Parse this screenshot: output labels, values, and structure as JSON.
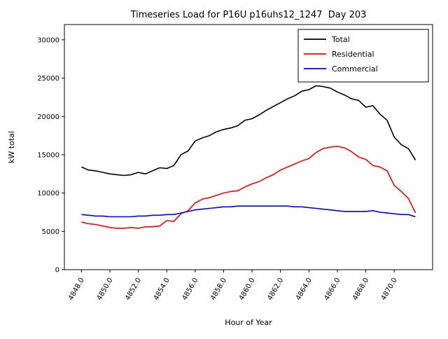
{
  "chart_data": {
    "type": "line",
    "title": "Timeseries Load for P16U p16uhs12_1247  Day 203",
    "xlabel": "Hour of Year",
    "ylabel": "kW total",
    "xlim": [
      4846.8,
      4872.7
    ],
    "ylim": [
      0,
      32000
    ],
    "grid": false,
    "legend_position": "upper right",
    "x_ticks": {
      "values": [
        4848,
        4850,
        4852,
        4854,
        4856,
        4858,
        4860,
        4862,
        4864,
        4866,
        4868,
        4870
      ],
      "labels": [
        "4848.0",
        "4850.0",
        "4852.0",
        "4854.0",
        "4856.0",
        "4858.0",
        "4860.0",
        "4862.0",
        "4864.0",
        "4866.0",
        "4868.0",
        "4870.0"
      ]
    },
    "y_ticks": {
      "values": [
        0,
        5000,
        10000,
        15000,
        20000,
        25000,
        30000
      ],
      "labels": [
        "0",
        "5000",
        "10000",
        "15000",
        "20000",
        "25000",
        "30000"
      ]
    },
    "x": [
      4848.0,
      4848.5,
      4849.0,
      4849.5,
      4850.0,
      4850.5,
      4851.0,
      4851.5,
      4852.0,
      4852.5,
      4853.0,
      4853.5,
      4854.0,
      4854.5,
      4855.0,
      4855.5,
      4856.0,
      4856.5,
      4857.0,
      4857.5,
      4858.0,
      4858.5,
      4859.0,
      4859.5,
      4860.0,
      4860.5,
      4861.0,
      4861.5,
      4862.0,
      4862.5,
      4863.0,
      4863.5,
      4864.0,
      4864.5,
      4865.0,
      4865.5,
      4866.0,
      4866.5,
      4867.0,
      4867.5,
      4868.0,
      4868.5,
      4869.0,
      4869.5,
      4870.0,
      4870.5,
      4871.0,
      4871.5
    ],
    "series": [
      {
        "name": "Total",
        "color": "#000000",
        "values": [
          13400,
          13000,
          12900,
          12700,
          12500,
          12400,
          12300,
          12400,
          12700,
          12500,
          12900,
          13300,
          13200,
          13600,
          15000,
          15500,
          16800,
          17200,
          17500,
          18000,
          18300,
          18500,
          18800,
          19500,
          19700,
          20200,
          20800,
          21300,
          21800,
          22300,
          22700,
          23300,
          23500,
          24000,
          23900,
          23700,
          23200,
          22800,
          22300,
          22100,
          21200,
          21400,
          20300,
          19500,
          17300,
          16300,
          15800,
          14300
        ]
      },
      {
        "name": "Residential",
        "color": "#ff0000",
        "values": [
          6200,
          6000,
          5900,
          5700,
          5500,
          5400,
          5400,
          5500,
          5400,
          5600,
          5600,
          5700,
          6400,
          6300,
          7300,
          7700,
          8700,
          9200,
          9400,
          9700,
          10000,
          10200,
          10300,
          10800,
          11200,
          11500,
          12000,
          12400,
          13000,
          13400,
          13800,
          14200,
          14500,
          15300,
          15800,
          16000,
          16100,
          15900,
          15400,
          14700,
          14400,
          13600,
          13400,
          12900,
          11000,
          10200,
          9300,
          7400
        ]
      },
      {
        "name": "Commercial",
        "color": "#0000ff",
        "values": [
          7200,
          7100,
          7000,
          7000,
          6900,
          6900,
          6900,
          6900,
          7000,
          7000,
          7100,
          7100,
          7200,
          7200,
          7400,
          7600,
          7800,
          7900,
          8000,
          8100,
          8200,
          8200,
          8300,
          8300,
          8300,
          8300,
          8300,
          8300,
          8300,
          8300,
          8200,
          8200,
          8100,
          8000,
          7900,
          7800,
          7700,
          7600,
          7600,
          7600,
          7600,
          7700,
          7500,
          7400,
          7300,
          7200,
          7200,
          6900
        ]
      }
    ]
  }
}
